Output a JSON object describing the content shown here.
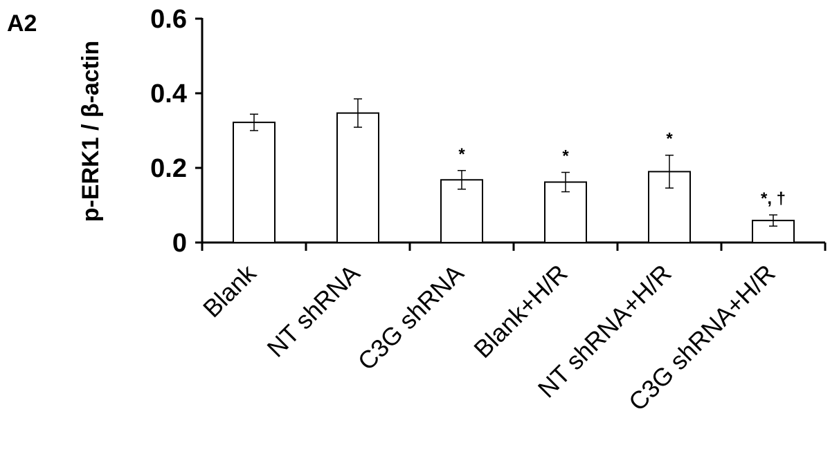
{
  "chart_data": {
    "type": "bar",
    "panel_label": "A2",
    "title": "",
    "xlabel": "",
    "ylabel": "p-ERK1 / β-actin",
    "ylim": [
      0,
      0.6
    ],
    "yticks": [
      0,
      0.2,
      0.4,
      0.6
    ],
    "ytick_labels": [
      "0",
      "0.2",
      "0.4",
      "0.6"
    ],
    "categories": [
      "Blank",
      "NT shRNA",
      "C3G shRNA",
      "Blank+H/R",
      "NT shRNA+H/R",
      "C3G shRNA+H/R"
    ],
    "values": [
      0.322,
      0.347,
      0.168,
      0.162,
      0.19,
      0.059
    ],
    "errors": [
      0.022,
      0.038,
      0.025,
      0.026,
      0.044,
      0.015
    ],
    "annotations": [
      "",
      "",
      "*",
      "*",
      "*",
      "*, †"
    ],
    "bar_color": "#ffffff",
    "edge_color": "#000000",
    "grid": false,
    "legend": "none"
  }
}
